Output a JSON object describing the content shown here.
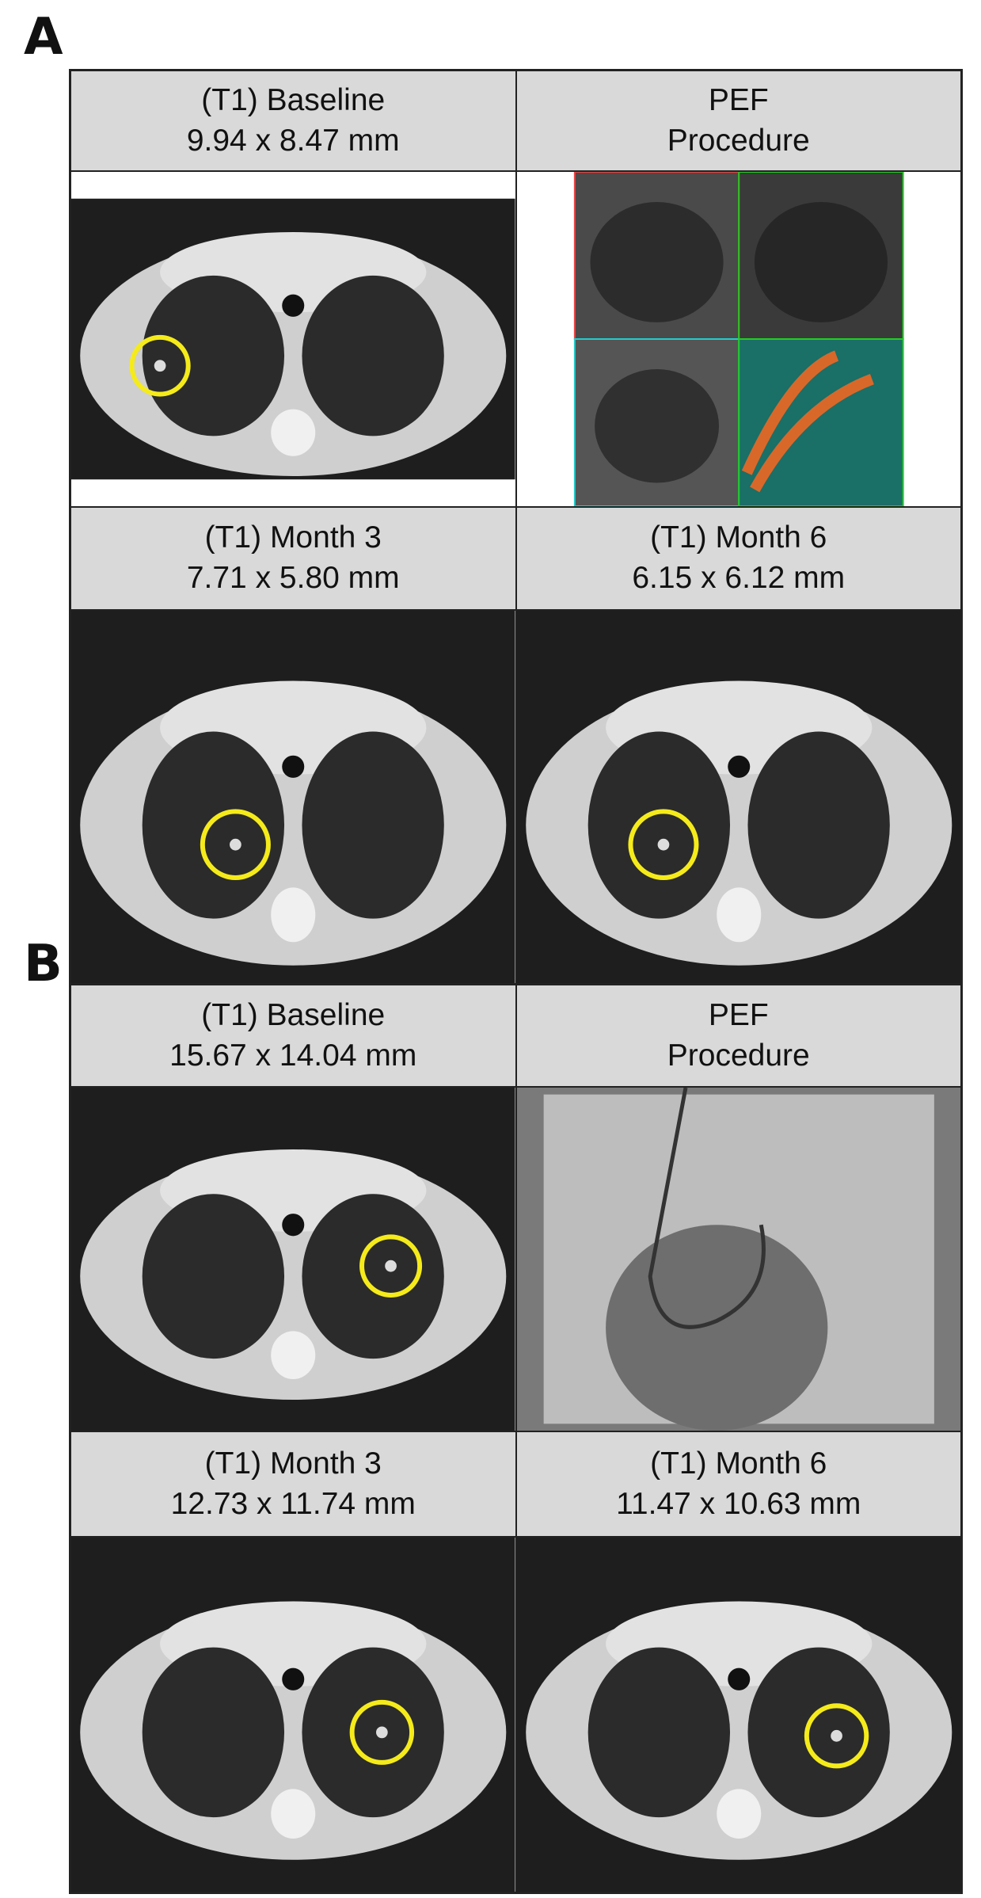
{
  "panels": [
    {
      "label": "A",
      "cells": [
        {
          "lines": [
            "(T1) Baseline",
            "9.94 x 8.47 mm"
          ]
        },
        {
          "lines": [
            "PEF",
            "Procedure"
          ]
        },
        {
          "lines": [
            "(T1) Month 3",
            "7.71 x 5.80 mm"
          ]
        },
        {
          "lines": [
            "(T1) Month 6",
            "6.15 x 6.12 mm"
          ]
        }
      ]
    },
    {
      "label": "B",
      "cells": [
        {
          "lines": [
            "(T1) Baseline",
            "15.67 x 14.04 mm"
          ]
        },
        {
          "lines": [
            "PEF",
            "Procedure"
          ]
        },
        {
          "lines": [
            "(T1) Month 3",
            "12.73 x 11.74 mm"
          ]
        },
        {
          "lines": [
            "(T1) Month 6",
            "11.47 x 10.63 mm"
          ]
        }
      ]
    }
  ]
}
